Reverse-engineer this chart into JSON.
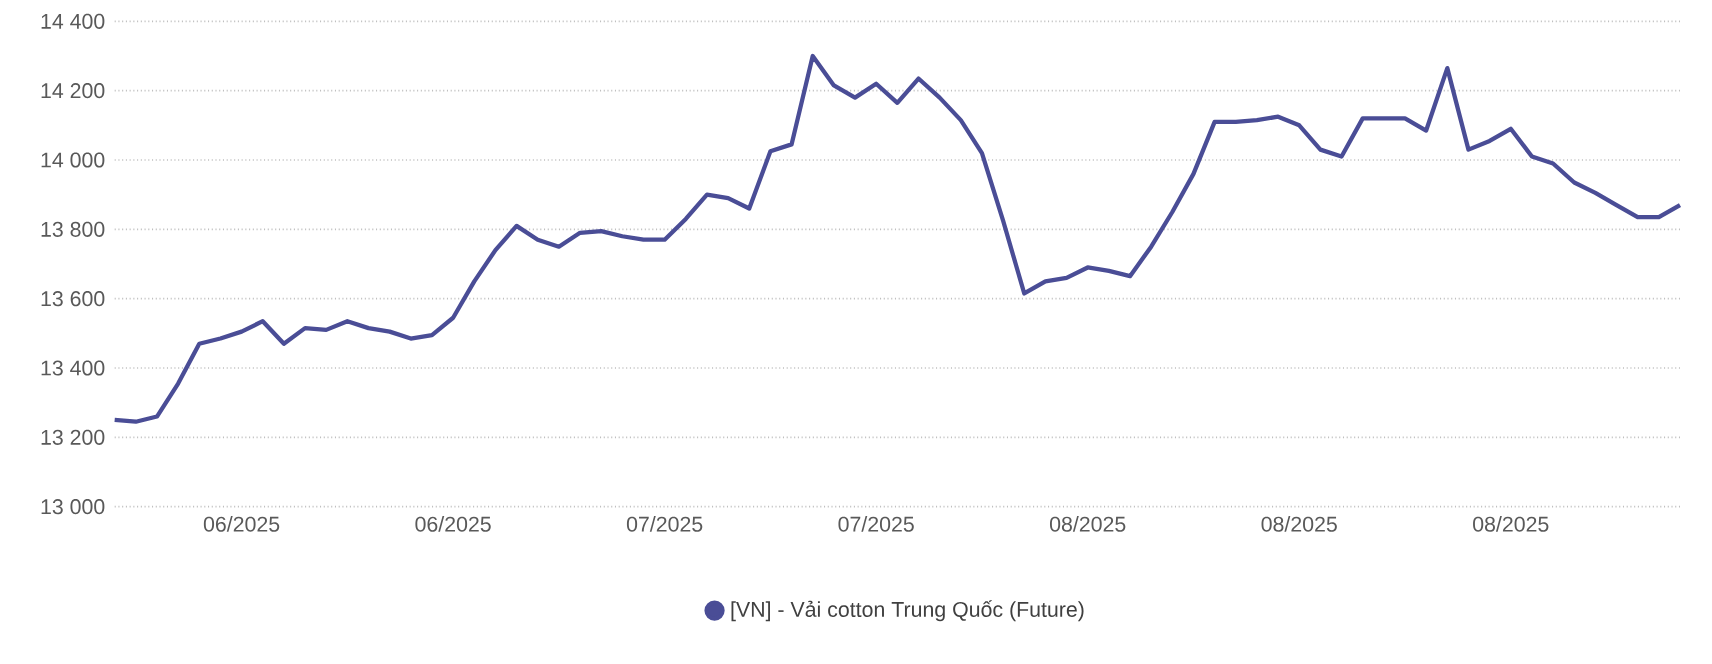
{
  "chart_data": {
    "type": "line",
    "categories": [
      null,
      null,
      null,
      null,
      null,
      null,
      "06/2025",
      null,
      null,
      null,
      null,
      null,
      null,
      null,
      null,
      null,
      "06/2025",
      null,
      null,
      null,
      null,
      null,
      null,
      null,
      null,
      null,
      "07/2025",
      null,
      null,
      null,
      null,
      null,
      null,
      null,
      null,
      null,
      "07/2025",
      null,
      null,
      null,
      null,
      null,
      null,
      null,
      null,
      null,
      "08/2025",
      null,
      null,
      null,
      null,
      null,
      null,
      null,
      null,
      null,
      "08/2025",
      null,
      null,
      null,
      null,
      null,
      null,
      null,
      null,
      null,
      "08/2025",
      null,
      null,
      null,
      null,
      null,
      null,
      null,
      null
    ],
    "series": [
      {
        "name": "[VN] - Vải cotton Trung Quốc (Future)",
        "color": "#4a4d96",
        "values": [
          13250,
          13245,
          13260,
          13355,
          13470,
          13485,
          13505,
          13535,
          13470,
          13515,
          13510,
          13535,
          13515,
          13505,
          13485,
          13495,
          13545,
          13650,
          13740,
          13810,
          13770,
          13750,
          13790,
          13795,
          13780,
          13770,
          13770,
          13830,
          13900,
          13890,
          13860,
          14025,
          14045,
          14300,
          14215,
          14180,
          14220,
          14165,
          14235,
          14180,
          14115,
          14020,
          13825,
          13615,
          13650,
          13660,
          13690,
          13680,
          13665,
          13750,
          13850,
          13960,
          14110,
          14110,
          14115,
          14125,
          14100,
          14030,
          14010,
          14120,
          14120,
          14120,
          14085,
          14265,
          14030,
          14055,
          14090,
          14010,
          13990,
          13935,
          13905,
          13870,
          13835,
          13835,
          13870
        ]
      }
    ],
    "ylim": [
      13000,
      14400
    ],
    "yticks": [
      {
        "value": 13000,
        "label": "13 000"
      },
      {
        "value": 13200,
        "label": "13 200"
      },
      {
        "value": 13400,
        "label": "13 400"
      },
      {
        "value": 13600,
        "label": "13 600"
      },
      {
        "value": 13800,
        "label": "13 800"
      },
      {
        "value": 14000,
        "label": "14 000"
      },
      {
        "value": 14200,
        "label": "14 200"
      },
      {
        "value": 14400,
        "label": "14 400"
      }
    ],
    "grid": "y",
    "legend": "bottom",
    "marker": "none",
    "line_style": "solid"
  }
}
